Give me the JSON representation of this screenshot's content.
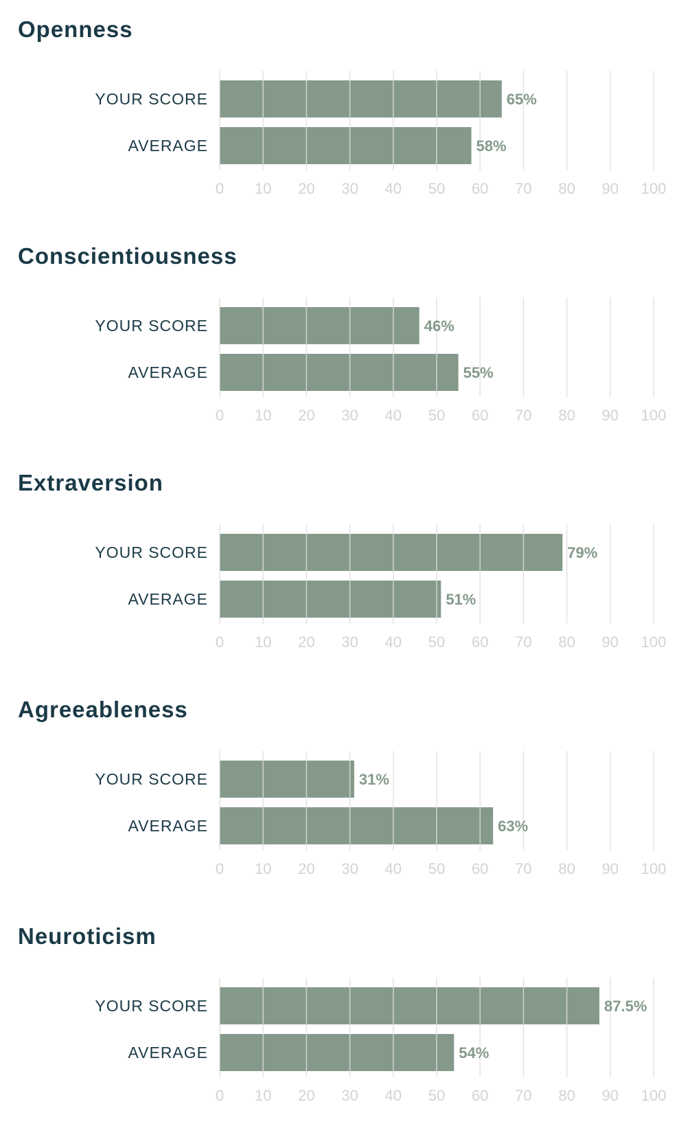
{
  "colors": {
    "title": "#1b3a47",
    "bar": "#84998a",
    "value_label": "#84998a",
    "grid": "#dddddd",
    "tick": "#d3d3d3"
  },
  "chart_data": [
    {
      "type": "bar",
      "orientation": "horizontal",
      "title": "Openness",
      "categories": [
        "YOUR SCORE",
        "AVERAGE"
      ],
      "values": [
        65,
        58
      ],
      "value_labels": [
        "65%",
        "58%"
      ],
      "xlim": [
        0,
        100
      ],
      "ticks": [
        "0",
        "10",
        "20",
        "30",
        "40",
        "50",
        "60",
        "70",
        "80",
        "90",
        "100"
      ],
      "grid": true
    },
    {
      "type": "bar",
      "orientation": "horizontal",
      "title": "Conscientiousness",
      "categories": [
        "YOUR SCORE",
        "AVERAGE"
      ],
      "values": [
        46,
        55
      ],
      "value_labels": [
        "46%",
        "55%"
      ],
      "xlim": [
        0,
        100
      ],
      "ticks": [
        "0",
        "10",
        "20",
        "30",
        "40",
        "50",
        "60",
        "70",
        "80",
        "90",
        "100"
      ],
      "grid": true
    },
    {
      "type": "bar",
      "orientation": "horizontal",
      "title": "Extraversion",
      "categories": [
        "YOUR SCORE",
        "AVERAGE"
      ],
      "values": [
        79,
        51
      ],
      "value_labels": [
        "79%",
        "51%"
      ],
      "xlim": [
        0,
        100
      ],
      "ticks": [
        "0",
        "10",
        "20",
        "30",
        "40",
        "50",
        "60",
        "70",
        "80",
        "90",
        "100"
      ],
      "grid": true
    },
    {
      "type": "bar",
      "orientation": "horizontal",
      "title": "Agreeableness",
      "categories": [
        "YOUR SCORE",
        "AVERAGE"
      ],
      "values": [
        31,
        63
      ],
      "value_labels": [
        "31%",
        "63%"
      ],
      "xlim": [
        0,
        100
      ],
      "ticks": [
        "0",
        "10",
        "20",
        "30",
        "40",
        "50",
        "60",
        "70",
        "80",
        "90",
        "100"
      ],
      "grid": true
    },
    {
      "type": "bar",
      "orientation": "horizontal",
      "title": "Neuroticism",
      "categories": [
        "YOUR SCORE",
        "AVERAGE"
      ],
      "values": [
        87.5,
        54
      ],
      "value_labels": [
        "87.5%",
        "54%"
      ],
      "xlim": [
        0,
        100
      ],
      "ticks": [
        "0",
        "10",
        "20",
        "30",
        "40",
        "50",
        "60",
        "70",
        "80",
        "90",
        "100"
      ],
      "grid": true
    }
  ]
}
